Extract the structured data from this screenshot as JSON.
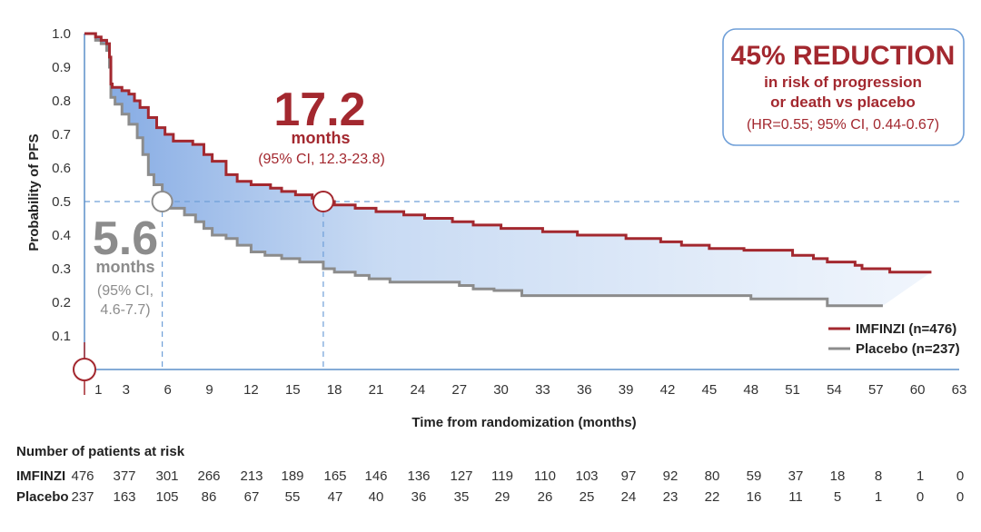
{
  "chart_data": {
    "type": "line",
    "subtype": "kaplan-meier",
    "ylabel": "Probability of PFS",
    "xlabel": "Time from randomization (months)",
    "ylim": [
      0,
      1.0
    ],
    "xlim": [
      0,
      63
    ],
    "yticks": [
      "0.1",
      "0.2",
      "0.3",
      "0.4",
      "0.5",
      "0.6",
      "0.7",
      "0.8",
      "0.9",
      "1.0"
    ],
    "xticks": [
      "1",
      "3",
      "6",
      "9",
      "12",
      "15",
      "18",
      "21",
      "24",
      "27",
      "30",
      "33",
      "36",
      "39",
      "42",
      "45",
      "48",
      "51",
      "54",
      "57",
      "60",
      "63"
    ],
    "reference_line_y": 0.5,
    "series": [
      {
        "name": "IMFINZI (n=476)",
        "color": "#a3282f",
        "points": [
          [
            0,
            1.0
          ],
          [
            0.4,
            1.0
          ],
          [
            0.8,
            0.99
          ],
          [
            1.2,
            0.98
          ],
          [
            1.6,
            0.97
          ],
          [
            1.8,
            0.93
          ],
          [
            1.9,
            0.85
          ],
          [
            2.0,
            0.84
          ],
          [
            2.5,
            0.84
          ],
          [
            2.7,
            0.83
          ],
          [
            3.2,
            0.82
          ],
          [
            3.6,
            0.8
          ],
          [
            4.0,
            0.78
          ],
          [
            4.6,
            0.75
          ],
          [
            5.2,
            0.72
          ],
          [
            5.8,
            0.7
          ],
          [
            6.4,
            0.68
          ],
          [
            7.2,
            0.68
          ],
          [
            7.8,
            0.67
          ],
          [
            8.6,
            0.64
          ],
          [
            9.2,
            0.62
          ],
          [
            10.2,
            0.58
          ],
          [
            11.0,
            0.56
          ],
          [
            12.0,
            0.55
          ],
          [
            13.4,
            0.54
          ],
          [
            14.2,
            0.53
          ],
          [
            15.2,
            0.52
          ],
          [
            16.4,
            0.51
          ],
          [
            17.2,
            0.5
          ],
          [
            18.0,
            0.49
          ],
          [
            19.5,
            0.48
          ],
          [
            21.0,
            0.47
          ],
          [
            23.0,
            0.46
          ],
          [
            24.5,
            0.45
          ],
          [
            26.5,
            0.44
          ],
          [
            28.0,
            0.43
          ],
          [
            30.0,
            0.42
          ],
          [
            33.0,
            0.41
          ],
          [
            35.5,
            0.4
          ],
          [
            39.0,
            0.39
          ],
          [
            41.5,
            0.38
          ],
          [
            43.0,
            0.37
          ],
          [
            45.0,
            0.36
          ],
          [
            47.5,
            0.355
          ],
          [
            51.0,
            0.34
          ],
          [
            52.5,
            0.33
          ],
          [
            53.5,
            0.32
          ],
          [
            55.5,
            0.31
          ],
          [
            56.0,
            0.3
          ],
          [
            58.0,
            0.29
          ],
          [
            61.0,
            0.29
          ]
        ]
      },
      {
        "name": "Placebo (n=237)",
        "color": "#8c8c8c",
        "points": [
          [
            0,
            1.0
          ],
          [
            0.4,
            1.0
          ],
          [
            0.8,
            0.98
          ],
          [
            1.2,
            0.97
          ],
          [
            1.6,
            0.95
          ],
          [
            1.8,
            0.9
          ],
          [
            1.9,
            0.81
          ],
          [
            2.2,
            0.79
          ],
          [
            2.7,
            0.76
          ],
          [
            3.2,
            0.73
          ],
          [
            3.8,
            0.69
          ],
          [
            4.2,
            0.64
          ],
          [
            4.6,
            0.58
          ],
          [
            5.0,
            0.55
          ],
          [
            5.6,
            0.5
          ],
          [
            6.2,
            0.48
          ],
          [
            7.2,
            0.46
          ],
          [
            8.0,
            0.44
          ],
          [
            8.6,
            0.42
          ],
          [
            9.2,
            0.4
          ],
          [
            10.2,
            0.39
          ],
          [
            11.0,
            0.37
          ],
          [
            12.0,
            0.35
          ],
          [
            13.0,
            0.34
          ],
          [
            14.2,
            0.33
          ],
          [
            15.5,
            0.32
          ],
          [
            17.2,
            0.3
          ],
          [
            18.0,
            0.29
          ],
          [
            19.5,
            0.28
          ],
          [
            20.5,
            0.27
          ],
          [
            22.0,
            0.26
          ],
          [
            27.0,
            0.25
          ],
          [
            28.0,
            0.24
          ],
          [
            29.5,
            0.235
          ],
          [
            31.5,
            0.22
          ],
          [
            48.0,
            0.21
          ],
          [
            53.5,
            0.19
          ],
          [
            57.5,
            0.19
          ]
        ]
      }
    ],
    "medians": [
      {
        "series": "IMFINZI",
        "value_label": "17.2",
        "unit": "months",
        "ci": "(95% CI, 12.3-23.8)",
        "x": 17.2,
        "y": 0.5
      },
      {
        "series": "Placebo",
        "value_label": "5.6",
        "unit": "months",
        "ci_line1": "(95% CI,",
        "ci_line2": "4.6-7.7)",
        "x": 5.6,
        "y": 0.5
      }
    ],
    "callout": {
      "headline": "45% REDUCTION",
      "line2": "in risk of progression",
      "line3": "or death vs placebo",
      "line4": "(HR=0.55; 95% CI, 0.44-0.67)"
    },
    "legend": [
      {
        "label": "IMFINZI (n=476)",
        "color": "#a3282f"
      },
      {
        "label": "Placebo (n=237)",
        "color": "#8c8c8c"
      }
    ],
    "at_risk": {
      "title": "Number of patients at risk",
      "rows": [
        {
          "label": "IMFINZI",
          "values": [
            "476",
            "377",
            "301",
            "266",
            "213",
            "189",
            "165",
            "146",
            "136",
            "127",
            "119",
            "110",
            "103",
            "97",
            "92",
            "80",
            "59",
            "37",
            "18",
            "8",
            "1",
            "0"
          ]
        },
        {
          "label": "Placebo",
          "values": [
            "237",
            "163",
            "105",
            "86",
            "67",
            "55",
            "47",
            "40",
            "36",
            "35",
            "29",
            "26",
            "25",
            "24",
            "23",
            "22",
            "16",
            "11",
            "5",
            "1",
            "0",
            "0"
          ]
        }
      ]
    }
  },
  "colors": {
    "imfinzi": "#a3282f",
    "placebo": "#8c8c8c",
    "axis": "#5b8fc9",
    "fill": "#2f6fd0",
    "ref": "#6f9fd8"
  }
}
